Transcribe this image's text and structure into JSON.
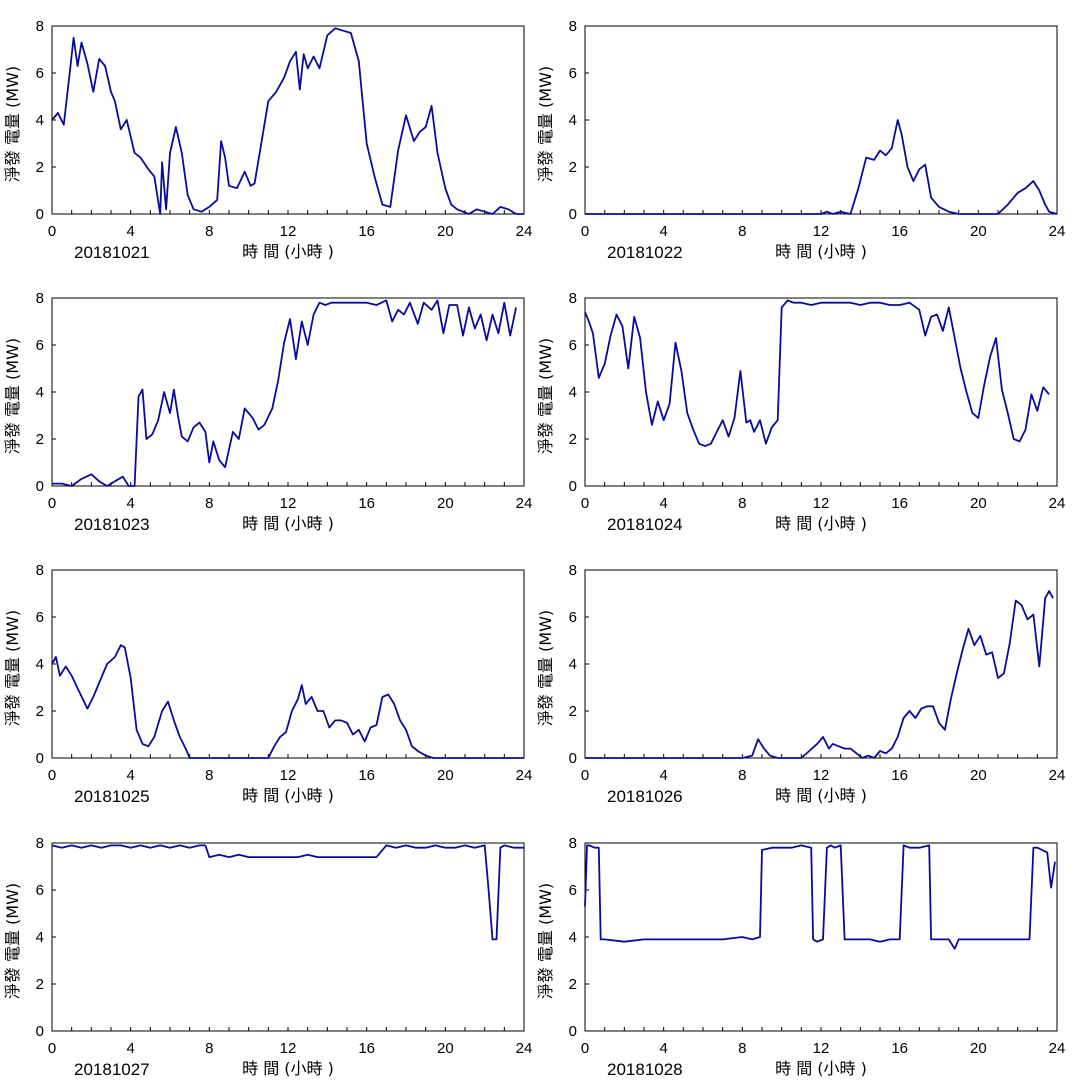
{
  "figure": {
    "xlabel": "時 間 (小時 )",
    "ylabel": "淨發 電量 (MW)",
    "line_color": "#0a0a9c"
  },
  "chart_data": [
    {
      "type": "line",
      "date": "20181021",
      "xlim": [
        0,
        24
      ],
      "ylim": [
        0,
        8
      ],
      "xticks": [
        0,
        4,
        8,
        12,
        16,
        20,
        24
      ],
      "yticks": [
        0,
        2,
        4,
        6,
        8
      ],
      "grid": false,
      "x": [
        0,
        0.3,
        0.6,
        0.9,
        1.1,
        1.3,
        1.5,
        1.8,
        2.1,
        2.4,
        2.7,
        3.0,
        3.2,
        3.5,
        3.8,
        4.2,
        4.5,
        4.9,
        5.2,
        5.5,
        5.6,
        5.8,
        6.0,
        6.3,
        6.6,
        6.9,
        7.2,
        7.6,
        8.0,
        8.4,
        8.6,
        8.8,
        9.0,
        9.4,
        9.8,
        10.1,
        10.3,
        10.6,
        11.0,
        11.4,
        11.8,
        12.1,
        12.4,
        12.6,
        12.8,
        13.0,
        13.3,
        13.6,
        14.0,
        14.4,
        14.8,
        15.2,
        15.6,
        16.0,
        16.2,
        16.4,
        16.8,
        17.2,
        17.6,
        18.0,
        18.4,
        18.7,
        19.0,
        19.3,
        19.6,
        20.0,
        20.3,
        20.6,
        20.9,
        21.2,
        21.6,
        22.0,
        22.4,
        22.8,
        23.2,
        23.6,
        24.0
      ],
      "values": [
        4.0,
        4.3,
        3.8,
        6.0,
        7.5,
        6.3,
        7.3,
        6.4,
        5.2,
        6.6,
        6.3,
        5.2,
        4.8,
        3.6,
        4.0,
        2.6,
        2.4,
        1.9,
        1.6,
        0.0,
        2.2,
        0.2,
        2.6,
        3.7,
        2.6,
        0.8,
        0.2,
        0.1,
        0.3,
        0.6,
        3.1,
        2.4,
        1.2,
        1.1,
        1.8,
        1.2,
        1.3,
        2.8,
        4.8,
        5.2,
        5.8,
        6.5,
        6.9,
        5.3,
        6.8,
        6.2,
        6.7,
        6.2,
        7.6,
        7.9,
        7.8,
        7.7,
        6.5,
        3.0,
        2.3,
        1.6,
        0.4,
        0.3,
        2.7,
        4.2,
        3.1,
        3.5,
        3.7,
        4.6,
        2.6,
        1.1,
        0.4,
        0.2,
        0.1,
        0.0,
        0.2,
        0.1,
        0.0,
        0.3,
        0.2,
        0.0,
        0.0
      ]
    },
    {
      "type": "line",
      "date": "20181022",
      "xlim": [
        0,
        24
      ],
      "ylim": [
        0,
        8
      ],
      "xticks": [
        0,
        4,
        8,
        12,
        16,
        20,
        24
      ],
      "yticks": [
        0,
        2,
        4,
        6,
        8
      ],
      "grid": false,
      "x": [
        0,
        4,
        8,
        12.0,
        12.3,
        12.6,
        13.0,
        13.5,
        13.9,
        14.3,
        14.7,
        15.0,
        15.3,
        15.6,
        15.9,
        16.1,
        16.4,
        16.7,
        17.0,
        17.3,
        17.6,
        18.0,
        18.5,
        19.0,
        19.5,
        20.0,
        20.5,
        21.0,
        21.5,
        22.0,
        22.4,
        22.8,
        23.1,
        23.4,
        23.6,
        24.0
      ],
      "values": [
        0,
        0,
        0,
        0.0,
        0.1,
        0.0,
        0.1,
        0.0,
        1.1,
        2.4,
        2.3,
        2.7,
        2.5,
        2.8,
        4.0,
        3.4,
        2.0,
        1.4,
        1.9,
        2.1,
        0.7,
        0.3,
        0.1,
        0.0,
        0.0,
        0.0,
        0.0,
        0.0,
        0.4,
        0.9,
        1.1,
        1.4,
        1.0,
        0.4,
        0.1,
        0.0
      ]
    },
    {
      "type": "line",
      "date": "20181023",
      "xlim": [
        0,
        24
      ],
      "ylim": [
        0,
        8
      ],
      "xticks": [
        0,
        4,
        8,
        12,
        16,
        20,
        24
      ],
      "yticks": [
        0,
        2,
        4,
        6,
        8
      ],
      "grid": false,
      "x": [
        0,
        0.5,
        1.0,
        1.5,
        2.0,
        2.4,
        2.8,
        3.2,
        3.6,
        3.9,
        4.2,
        4.4,
        4.6,
        4.8,
        5.1,
        5.4,
        5.7,
        6.0,
        6.2,
        6.4,
        6.6,
        6.9,
        7.2,
        7.5,
        7.8,
        8.0,
        8.2,
        8.5,
        8.8,
        9.2,
        9.5,
        9.8,
        10.2,
        10.5,
        10.8,
        11.2,
        11.5,
        11.8,
        12.1,
        12.4,
        12.7,
        13.0,
        13.3,
        13.6,
        13.9,
        14.2,
        14.6,
        15.0,
        15.5,
        16.0,
        16.5,
        17.0,
        17.3,
        17.6,
        17.9,
        18.2,
        18.6,
        18.9,
        19.3,
        19.6,
        19.9,
        20.2,
        20.6,
        20.9,
        21.2,
        21.5,
        21.8,
        22.1,
        22.4,
        22.7,
        23.0,
        23.3,
        23.6
      ],
      "values": [
        0.1,
        0.1,
        0.0,
        0.3,
        0.5,
        0.2,
        0.0,
        0.2,
        0.4,
        0.0,
        0.0,
        3.8,
        4.1,
        2.0,
        2.2,
        2.8,
        4.0,
        3.1,
        4.1,
        3.0,
        2.1,
        1.9,
        2.5,
        2.7,
        2.3,
        1.0,
        1.9,
        1.1,
        0.8,
        2.3,
        2.0,
        3.3,
        2.9,
        2.4,
        2.6,
        3.3,
        4.5,
        6.1,
        7.1,
        5.4,
        7.0,
        6.0,
        7.3,
        7.8,
        7.7,
        7.8,
        7.8,
        7.8,
        7.8,
        7.8,
        7.7,
        7.9,
        7.0,
        7.5,
        7.3,
        7.8,
        6.9,
        7.8,
        7.5,
        7.9,
        6.5,
        7.7,
        7.7,
        6.4,
        7.6,
        6.7,
        7.3,
        6.2,
        7.3,
        6.5,
        7.8,
        6.4,
        7.6
      ]
    },
    {
      "type": "line",
      "date": "20181024",
      "xlim": [
        0,
        24
      ],
      "ylim": [
        0,
        8
      ],
      "xticks": [
        0,
        4,
        8,
        12,
        16,
        20,
        24
      ],
      "yticks": [
        0,
        2,
        4,
        6,
        8
      ],
      "grid": false,
      "x": [
        0,
        0.2,
        0.4,
        0.7,
        1.0,
        1.3,
        1.6,
        1.9,
        2.2,
        2.5,
        2.8,
        3.1,
        3.4,
        3.7,
        4.0,
        4.3,
        4.6,
        4.9,
        5.2,
        5.5,
        5.8,
        6.1,
        6.4,
        6.7,
        7.0,
        7.3,
        7.6,
        7.9,
        8.2,
        8.4,
        8.6,
        8.9,
        9.2,
        9.5,
        9.8,
        10.0,
        10.3,
        10.6,
        11.0,
        11.5,
        12.0,
        12.5,
        13.0,
        13.5,
        14.0,
        14.5,
        15.0,
        15.5,
        16.0,
        16.5,
        17.0,
        17.3,
        17.6,
        17.9,
        18.2,
        18.5,
        18.8,
        19.1,
        19.4,
        19.7,
        20.0,
        20.3,
        20.6,
        20.9,
        21.2,
        21.5,
        21.8,
        22.1,
        22.4,
        22.7,
        23.0,
        23.3,
        23.6
      ],
      "values": [
        7.4,
        7.0,
        6.5,
        4.6,
        5.2,
        6.4,
        7.3,
        6.8,
        5.0,
        7.2,
        6.3,
        4.0,
        2.6,
        3.6,
        2.8,
        3.5,
        6.1,
        4.9,
        3.1,
        2.4,
        1.8,
        1.7,
        1.8,
        2.3,
        2.8,
        2.1,
        2.9,
        4.9,
        2.7,
        2.8,
        2.3,
        2.8,
        1.8,
        2.5,
        2.8,
        7.6,
        7.9,
        7.8,
        7.8,
        7.7,
        7.8,
        7.8,
        7.8,
        7.8,
        7.7,
        7.8,
        7.8,
        7.7,
        7.7,
        7.8,
        7.5,
        6.4,
        7.2,
        7.3,
        6.6,
        7.6,
        6.3,
        5.0,
        4.0,
        3.1,
        2.9,
        4.3,
        5.5,
        6.3,
        4.1,
        3.1,
        2.0,
        1.9,
        2.4,
        3.9,
        3.2,
        4.2,
        3.9
      ]
    },
    {
      "type": "line",
      "date": "20181025",
      "xlim": [
        0,
        24
      ],
      "ylim": [
        0,
        8
      ],
      "xticks": [
        0,
        4,
        8,
        12,
        16,
        20,
        24
      ],
      "yticks": [
        0,
        2,
        4,
        6,
        8
      ],
      "grid": false,
      "x": [
        0,
        0.2,
        0.4,
        0.7,
        1.0,
        1.4,
        1.8,
        2.1,
        2.4,
        2.8,
        3.2,
        3.5,
        3.7,
        4.0,
        4.3,
        4.6,
        4.9,
        5.2,
        5.6,
        5.9,
        6.2,
        6.5,
        6.8,
        7.0,
        7.5,
        8.0,
        9.0,
        10.0,
        11.0,
        11.3,
        11.6,
        11.9,
        12.2,
        12.5,
        12.7,
        12.9,
        13.2,
        13.5,
        13.8,
        14.1,
        14.4,
        14.7,
        15.0,
        15.3,
        15.6,
        15.9,
        16.2,
        16.5,
        16.8,
        17.1,
        17.4,
        17.7,
        18.0,
        18.3,
        18.6,
        19.0,
        19.4,
        19.8,
        20.0,
        21.0,
        22.0,
        23.0,
        24.0
      ],
      "values": [
        4.0,
        4.3,
        3.5,
        3.9,
        3.5,
        2.8,
        2.1,
        2.6,
        3.2,
        4.0,
        4.3,
        4.8,
        4.7,
        3.4,
        1.2,
        0.6,
        0.5,
        0.9,
        2.0,
        2.4,
        1.6,
        0.9,
        0.4,
        0.0,
        0.0,
        0.0,
        0.0,
        0.0,
        0.0,
        0.5,
        0.9,
        1.1,
        2.0,
        2.5,
        3.1,
        2.3,
        2.6,
        2.0,
        2.0,
        1.3,
        1.6,
        1.6,
        1.5,
        1.0,
        1.2,
        0.7,
        1.3,
        1.4,
        2.6,
        2.7,
        2.3,
        1.6,
        1.2,
        0.5,
        0.3,
        0.1,
        0.0,
        0.0,
        0.0,
        0.0,
        0.0,
        0.0,
        0.0
      ]
    },
    {
      "type": "line",
      "date": "20181026",
      "xlim": [
        0,
        24
      ],
      "ylim": [
        0,
        8
      ],
      "xticks": [
        0,
        4,
        8,
        12,
        16,
        20,
        24
      ],
      "yticks": [
        0,
        2,
        4,
        6,
        8
      ],
      "grid": false,
      "x": [
        0,
        4,
        8,
        8.5,
        8.8,
        9.1,
        9.4,
        9.8,
        10.2,
        11.0,
        11.4,
        11.8,
        12.1,
        12.4,
        12.6,
        12.9,
        13.2,
        13.5,
        13.8,
        14.1,
        14.4,
        14.7,
        15.0,
        15.3,
        15.6,
        15.9,
        16.2,
        16.5,
        16.8,
        17.1,
        17.4,
        17.7,
        18.0,
        18.3,
        18.6,
        18.9,
        19.2,
        19.5,
        19.8,
        20.1,
        20.4,
        20.7,
        21.0,
        21.3,
        21.6,
        21.9,
        22.2,
        22.5,
        22.8,
        23.1,
        23.4,
        23.6,
        23.8
      ],
      "values": [
        0,
        0,
        0,
        0.1,
        0.8,
        0.4,
        0.1,
        0.0,
        0.0,
        0.0,
        0.3,
        0.6,
        0.9,
        0.4,
        0.6,
        0.5,
        0.4,
        0.4,
        0.2,
        0.0,
        0.1,
        0.0,
        0.3,
        0.2,
        0.4,
        0.9,
        1.7,
        2.0,
        1.7,
        2.1,
        2.2,
        2.2,
        1.5,
        1.2,
        2.5,
        3.6,
        4.6,
        5.5,
        4.8,
        5.2,
        4.4,
        4.5,
        3.4,
        3.6,
        4.9,
        6.7,
        6.5,
        5.9,
        6.1,
        3.9,
        6.8,
        7.1,
        6.8
      ]
    },
    {
      "type": "line",
      "date": "20181027",
      "xlim": [
        0,
        24
      ],
      "ylim": [
        0,
        8
      ],
      "xticks": [
        0,
        4,
        8,
        12,
        16,
        20,
        24
      ],
      "yticks": [
        0,
        2,
        4,
        6,
        8
      ],
      "grid": false,
      "x": [
        0,
        0.5,
        1.0,
        1.5,
        2.0,
        2.5,
        3.0,
        3.5,
        4.0,
        4.5,
        5.0,
        5.5,
        6.0,
        6.5,
        7.0,
        7.5,
        7.8,
        8.0,
        8.5,
        9.0,
        9.5,
        10.0,
        10.5,
        11.0,
        11.5,
        12.0,
        12.5,
        13.0,
        13.5,
        14.0,
        14.5,
        15.0,
        15.5,
        16.0,
        16.5,
        17.0,
        17.5,
        18.0,
        18.5,
        19.0,
        19.5,
        20.0,
        20.5,
        21.0,
        21.5,
        22.0,
        22.2,
        22.4,
        22.6,
        22.8,
        23.0,
        23.5,
        24.0
      ],
      "values": [
        7.9,
        7.8,
        7.9,
        7.8,
        7.9,
        7.8,
        7.9,
        7.9,
        7.8,
        7.9,
        7.8,
        7.9,
        7.8,
        7.9,
        7.8,
        7.9,
        7.9,
        7.4,
        7.5,
        7.4,
        7.5,
        7.4,
        7.4,
        7.4,
        7.4,
        7.4,
        7.4,
        7.5,
        7.4,
        7.4,
        7.4,
        7.4,
        7.4,
        7.4,
        7.4,
        7.9,
        7.8,
        7.9,
        7.8,
        7.8,
        7.9,
        7.8,
        7.8,
        7.9,
        7.8,
        7.9,
        6.0,
        3.9,
        3.9,
        7.8,
        7.9,
        7.8,
        7.8
      ]
    },
    {
      "type": "line",
      "date": "20181028",
      "xlim": [
        0,
        24
      ],
      "ylim": [
        0,
        8
      ],
      "xticks": [
        0,
        4,
        8,
        12,
        16,
        20,
        24
      ],
      "yticks": [
        0,
        2,
        4,
        6,
        8
      ],
      "grid": false,
      "x": [
        0,
        0.1,
        0.2,
        0.5,
        0.7,
        0.8,
        1.0,
        2.0,
        3.0,
        4.0,
        5.0,
        6.0,
        7.0,
        8.0,
        8.5,
        8.9,
        9.0,
        9.5,
        10.0,
        10.5,
        11.0,
        11.5,
        11.6,
        11.8,
        12.1,
        12.3,
        12.5,
        12.7,
        13.0,
        13.2,
        13.5,
        14.0,
        14.5,
        15.0,
        15.5,
        16.0,
        16.2,
        16.5,
        17.0,
        17.5,
        17.6,
        18.0,
        18.5,
        18.8,
        19.0,
        19.5,
        20.0,
        21.0,
        22.0,
        22.6,
        22.8,
        23.0,
        23.5,
        23.7,
        23.9
      ],
      "values": [
        5.3,
        7.9,
        7.9,
        7.8,
        7.8,
        3.9,
        3.9,
        3.8,
        3.9,
        3.9,
        3.9,
        3.9,
        3.9,
        4.0,
        3.9,
        4.0,
        7.7,
        7.8,
        7.8,
        7.8,
        7.9,
        7.8,
        3.9,
        3.8,
        3.9,
        7.8,
        7.9,
        7.8,
        7.9,
        3.9,
        3.9,
        3.9,
        3.9,
        3.8,
        3.9,
        3.9,
        7.9,
        7.8,
        7.8,
        7.9,
        3.9,
        3.9,
        3.9,
        3.5,
        3.9,
        3.9,
        3.9,
        3.9,
        3.9,
        3.9,
        7.8,
        7.8,
        7.6,
        6.1,
        7.2
      ]
    }
  ]
}
